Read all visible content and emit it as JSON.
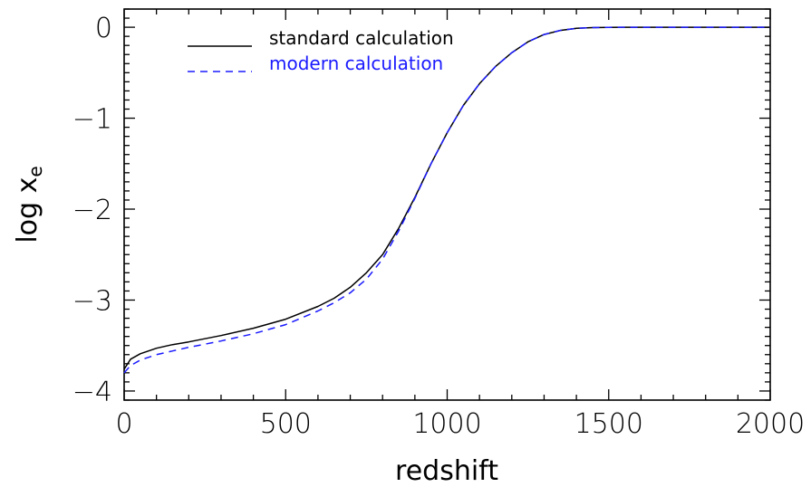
{
  "chart_data": {
    "type": "line",
    "xlabel": "redshift",
    "ylabel": "log x",
    "ylabel_subscript": "e",
    "xlim": [
      0,
      2000
    ],
    "ylim": [
      -4.1,
      0.2
    ],
    "xticks": [
      0,
      500,
      1000,
      1500,
      2000
    ],
    "xtick_labels": [
      "0",
      "500",
      "1000",
      "1500",
      "2000"
    ],
    "yticks": [
      0,
      -1,
      -2,
      -3,
      -4
    ],
    "ytick_labels": [
      "0",
      "−1",
      "−2",
      "−3",
      "−4"
    ],
    "grid": false,
    "legend_position": "top-left",
    "series": [
      {
        "name": "standard calculation",
        "color": "#000000",
        "style": "solid",
        "x": [
          0,
          20,
          50,
          100,
          150,
          200,
          300,
          400,
          500,
          600,
          650,
          700,
          750,
          800,
          850,
          900,
          950,
          1000,
          1050,
          1100,
          1150,
          1200,
          1250,
          1300,
          1350,
          1400,
          1450,
          1500,
          1550,
          1600,
          1700,
          1800,
          1900,
          2000
        ],
        "y": [
          -3.76,
          -3.65,
          -3.59,
          -3.53,
          -3.49,
          -3.46,
          -3.39,
          -3.31,
          -3.21,
          -3.07,
          -2.98,
          -2.86,
          -2.7,
          -2.5,
          -2.21,
          -1.87,
          -1.5,
          -1.16,
          -0.86,
          -0.62,
          -0.43,
          -0.28,
          -0.16,
          -0.08,
          -0.035,
          -0.012,
          -0.004,
          -0.001,
          0.0,
          0.0,
          0.0,
          0.0,
          0.0,
          0.0
        ]
      },
      {
        "name": "modern calculation",
        "color": "#1a1aff",
        "style": "dashed",
        "x": [
          0,
          20,
          50,
          100,
          150,
          200,
          300,
          400,
          500,
          600,
          650,
          700,
          750,
          800,
          850,
          900,
          950,
          1000,
          1050,
          1100,
          1150,
          1200,
          1250,
          1300,
          1350,
          1400,
          1450,
          1500,
          1550,
          1600,
          1700,
          1800,
          1900,
          2000
        ],
        "y": [
          -3.8,
          -3.72,
          -3.66,
          -3.6,
          -3.56,
          -3.52,
          -3.45,
          -3.37,
          -3.27,
          -3.12,
          -3.03,
          -2.92,
          -2.77,
          -2.55,
          -2.24,
          -1.88,
          -1.5,
          -1.16,
          -0.86,
          -0.62,
          -0.43,
          -0.28,
          -0.16,
          -0.08,
          -0.035,
          -0.012,
          -0.004,
          -0.001,
          0.0,
          0.0,
          0.0,
          0.0,
          0.0,
          0.0
        ]
      }
    ]
  }
}
